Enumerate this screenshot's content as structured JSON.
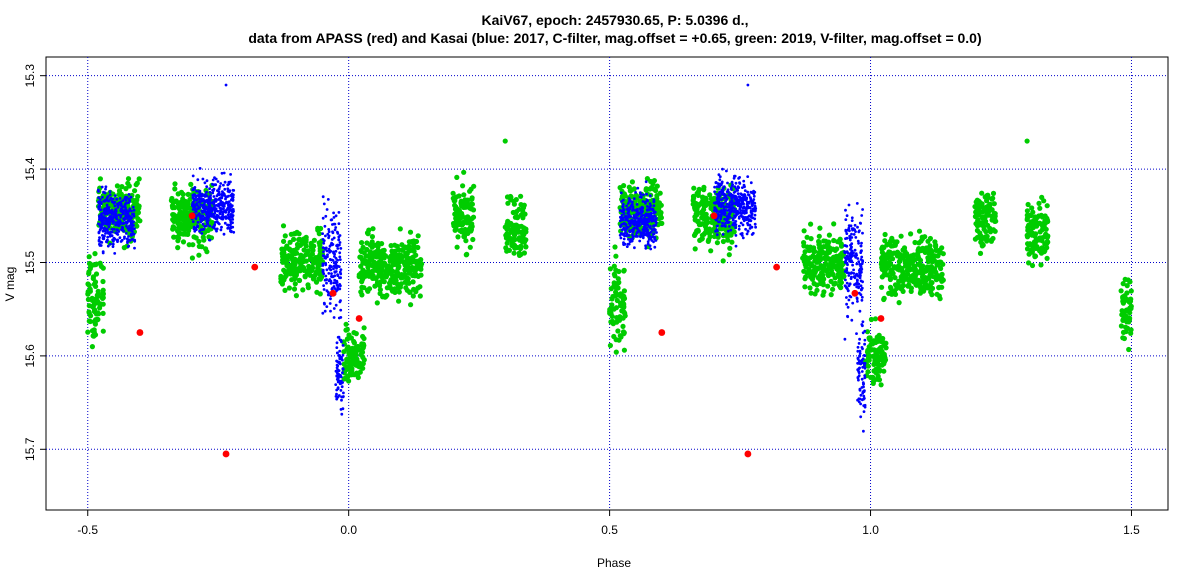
{
  "chart_data": {
    "type": "scatter",
    "title": "KaiV67, epoch: 2457930.65, P: 5.0396 d.,",
    "subtitle": "data from APASS (red) and Kasai (blue: 2017, C-filter, mag.offset = +0.65, green: 2019, V-filter, mag.offset = 0.0)",
    "xlabel": "Phase",
    "ylabel": "V mag",
    "xlim": [
      -0.58,
      1.57
    ],
    "ylim": [
      15.28,
      15.765
    ],
    "y_inverted": true,
    "grid": true,
    "x_ticks": [
      "-0.5",
      "0.0",
      "0.5",
      "1.0",
      "1.5"
    ],
    "y_ticks": [
      "15.3",
      "15.4",
      "15.5",
      "15.6",
      "15.7"
    ],
    "colors": {
      "apass": "#ff0000",
      "kasai_2017": "#0000ff",
      "kasai_2019": "#00cc00",
      "grid": "#0000cc"
    },
    "series": [
      {
        "color": "#ff0000",
        "x": [
          -0.4,
          -0.3,
          -0.235,
          -0.18,
          -0.03,
          0.02,
          0.6,
          0.7,
          0.765,
          0.82,
          0.97,
          1.02
        ],
        "y": [
          15.575,
          15.45,
          15.705,
          15.505,
          15.533,
          15.56,
          15.575,
          15.45,
          15.705,
          15.505,
          15.533,
          15.56
        ]
      },
      {
        "color": "#0000ff",
        "segments": [
          {
            "x0": -0.48,
            "x1": -0.41,
            "ymid": 15.455,
            "spread": 0.03
          },
          {
            "x0": -0.3,
            "x1": -0.22,
            "ymid": 15.44,
            "spread": 0.03
          },
          {
            "x0": -0.05,
            "x1": -0.015,
            "ymid": 15.5,
            "spread": 0.06
          },
          {
            "x0": -0.025,
            "x1": -0.01,
            "ymid": 15.62,
            "spread": 0.045
          },
          {
            "x0": 0.52,
            "x1": 0.59,
            "ymid": 15.455,
            "spread": 0.03
          },
          {
            "x0": 0.7,
            "x1": 0.78,
            "ymid": 15.44,
            "spread": 0.03
          },
          {
            "x0": 0.95,
            "x1": 0.985,
            "ymid": 15.5,
            "spread": 0.06
          },
          {
            "x0": 0.975,
            "x1": 0.99,
            "ymid": 15.62,
            "spread": 0.045
          }
        ],
        "outliers_x": [
          -0.235,
          0.765
        ],
        "outliers_y": [
          15.31,
          15.31
        ]
      },
      {
        "color": "#00cc00",
        "segments": [
          {
            "x0": -0.5,
            "x1": -0.47,
            "ymid": 15.54,
            "spread": 0.05
          },
          {
            "x0": -0.48,
            "x1": -0.4,
            "ymid": 15.445,
            "spread": 0.03
          },
          {
            "x0": -0.34,
            "x1": -0.26,
            "ymid": 15.45,
            "spread": 0.035
          },
          {
            "x0": -0.13,
            "x1": -0.05,
            "ymid": 15.5,
            "spread": 0.035
          },
          {
            "x0": -0.01,
            "x1": 0.03,
            "ymid": 15.6,
            "spread": 0.03
          },
          {
            "x0": 0.02,
            "x1": 0.14,
            "ymid": 15.505,
            "spread": 0.035
          },
          {
            "x0": 0.2,
            "x1": 0.24,
            "ymid": 15.45,
            "spread": 0.035
          },
          {
            "x0": 0.3,
            "x1": 0.34,
            "ymid": 15.465,
            "spread": 0.035
          },
          {
            "x0": 0.5,
            "x1": 0.53,
            "ymid": 15.54,
            "spread": 0.05
          },
          {
            "x0": 0.52,
            "x1": 0.6,
            "ymid": 15.445,
            "spread": 0.03
          },
          {
            "x0": 0.66,
            "x1": 0.74,
            "ymid": 15.45,
            "spread": 0.035
          },
          {
            "x0": 0.87,
            "x1": 0.95,
            "ymid": 15.5,
            "spread": 0.035
          },
          {
            "x0": 0.99,
            "x1": 1.03,
            "ymid": 15.6,
            "spread": 0.03
          },
          {
            "x0": 1.02,
            "x1": 1.14,
            "ymid": 15.505,
            "spread": 0.035
          },
          {
            "x0": 1.2,
            "x1": 1.24,
            "ymid": 15.45,
            "spread": 0.035
          },
          {
            "x0": 1.3,
            "x1": 1.34,
            "ymid": 15.465,
            "spread": 0.035
          },
          {
            "x0": 1.48,
            "x1": 1.5,
            "ymid": 15.55,
            "spread": 0.035
          }
        ],
        "outliers_x": [
          0.3,
          1.3
        ],
        "outliers_y": [
          15.37,
          15.37
        ]
      }
    ]
  }
}
